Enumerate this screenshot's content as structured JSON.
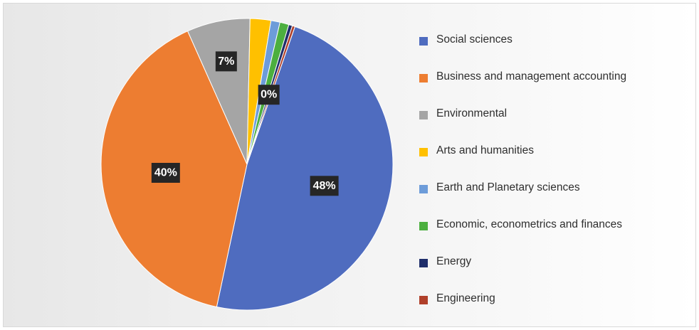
{
  "chart_data": {
    "type": "pie",
    "title": "",
    "slices": [
      {
        "label": "Social sciences",
        "value": 48,
        "color": "#4f6cbf",
        "data_label": "48%"
      },
      {
        "label": "Business and management accounting",
        "value": 40,
        "color": "#ed7d31",
        "data_label": "40%"
      },
      {
        "label": "Environmental",
        "value": 7,
        "color": "#a5a5a5",
        "data_label": "7%"
      },
      {
        "label": "Arts and humanities",
        "value": 2.3,
        "color": "#ffc000",
        "data_label": ""
      },
      {
        "label": "Earth and Planetary sciences",
        "value": 1,
        "color": "#6d9cd9",
        "data_label": ""
      },
      {
        "label": "Economic, econometrics and finances",
        "value": 1,
        "color": "#4caf3f",
        "data_label": ""
      },
      {
        "label": "Energy",
        "value": 0.4,
        "color": "#1f2e6b",
        "data_label": "0%"
      },
      {
        "label": "Engineering",
        "value": 0.3,
        "color": "#b0402a",
        "data_label": ""
      }
    ],
    "legend_position": "right"
  }
}
